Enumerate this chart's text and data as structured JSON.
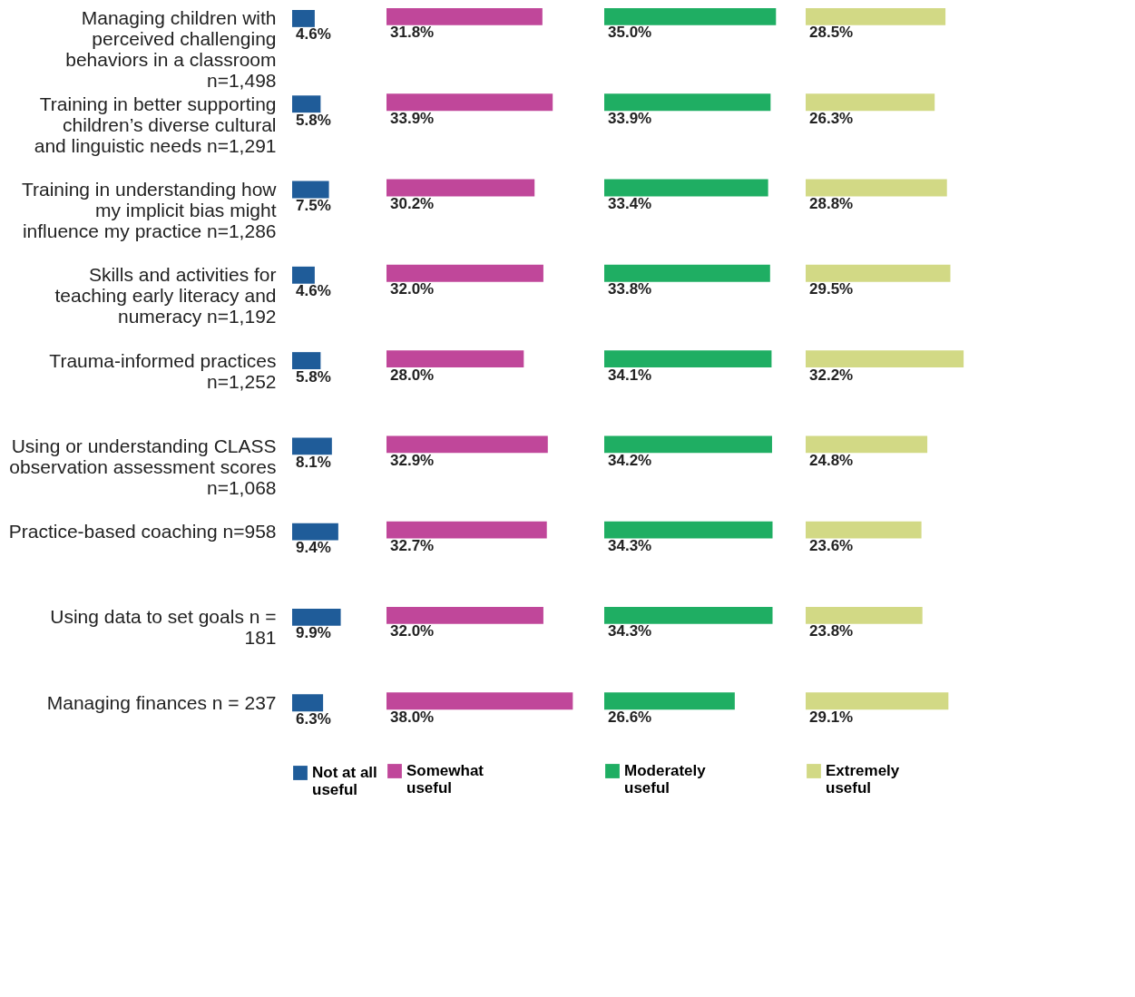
{
  "chart_data": [
    {
      "type": "bar",
      "orientation": "horizontal",
      "legend": "bottom",
      "tick_labels": "y",
      "categories": [
        "Managing children with perceived challenging behaviors in a classroom n=1,498",
        "Training in better supporting children’s diverse cultural and linguistic needs n=1,291",
        "Training in understanding how my implicit bias might influence my practice n=1,286",
        "Skills and activities for teaching early literacy and numeracy n=1,192",
        "Trauma-informed practices n=1,252",
        "Using or understanding CLASS observation assessment scores n=1,068",
        "Practice-based coaching n=958",
        "Using data to set goals n = 181",
        "Managing finances n = 237"
      ],
      "series": [
        {
          "name": "Not at all useful",
          "color": "#1f5c99",
          "values": [
            4.6,
            5.8,
            7.5,
            4.6,
            5.8,
            8.1,
            9.4,
            9.9,
            6.3
          ],
          "value_labels": [
            "4.6%",
            "5.8%",
            "7.5%",
            "4.6%",
            "5.8%",
            "8.1%",
            "9.4%",
            "9.9%",
            "6.3%"
          ]
        }
      ]
    },
    {
      "type": "bar",
      "orientation": "horizontal",
      "legend": "bottom",
      "tick_labels": false,
      "series": [
        {
          "name": "Somewhat useful",
          "color": "#c0479a",
          "values": [
            31.8,
            33.9,
            30.2,
            32.0,
            28.0,
            32.9,
            32.7,
            32.0,
            38.0
          ],
          "value_labels": [
            "31.8%",
            "33.9%",
            "30.2%",
            "32.0%",
            "28.0%",
            "32.9%",
            "32.7%",
            "32.0%",
            "38.0%"
          ]
        }
      ]
    },
    {
      "type": "bar",
      "orientation": "horizontal",
      "legend": "bottom",
      "tick_labels": false,
      "series": [
        {
          "name": "Moderately useful",
          "color": "#1fae63",
          "values": [
            35.0,
            33.9,
            33.4,
            33.8,
            34.1,
            34.2,
            34.3,
            34.3,
            26.6
          ],
          "value_labels": [
            "35.0%",
            "33.9%",
            "33.4%",
            "33.8%",
            "34.1%",
            "34.2%",
            "34.3%",
            "34.3%",
            "26.6%"
          ]
        }
      ]
    },
    {
      "type": "bar",
      "orientation": "horizontal",
      "legend": "bottom",
      "tick_labels": false,
      "series": [
        {
          "name": "Extremely useful",
          "color": "#d2d985",
          "values": [
            28.5,
            26.3,
            28.8,
            29.5,
            32.2,
            24.8,
            23.6,
            23.8,
            29.1
          ],
          "value_labels": [
            "28.5%",
            "26.3%",
            "28.8%",
            "29.5%",
            "32.2%",
            "24.8%",
            "23.6%",
            "23.8%",
            "29.1%"
          ]
        }
      ]
    }
  ]
}
